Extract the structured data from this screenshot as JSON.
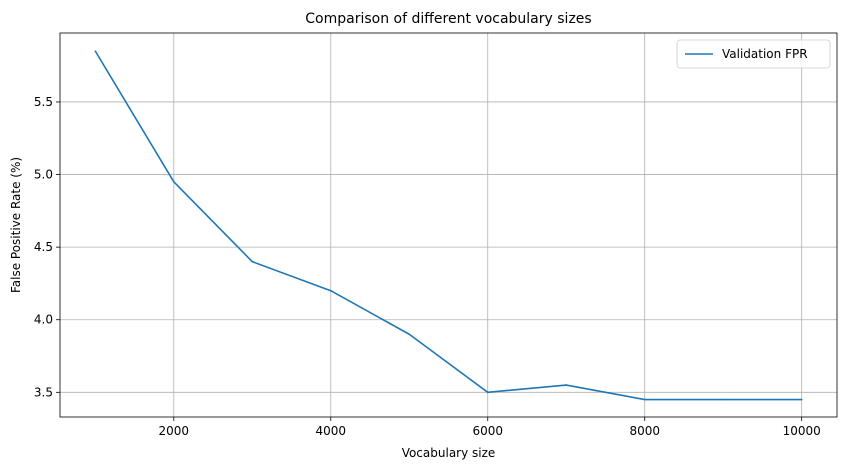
{
  "chart_data": {
    "type": "line",
    "title": "Comparison of different vocabulary sizes",
    "xlabel": "Vocabulary size",
    "ylabel": "False Positive Rate (%)",
    "xlim": [
      550,
      10450
    ],
    "ylim": [
      3.33,
      5.975
    ],
    "xticks": [
      2000,
      4000,
      6000,
      8000,
      10000
    ],
    "yticks": [
      3.5,
      4.0,
      4.5,
      5.0,
      5.5
    ],
    "grid": true,
    "legend_position": "top-right",
    "series": [
      {
        "name": "Validation FPR",
        "color": "#1f77b4",
        "x": [
          1000,
          2000,
          3000,
          4000,
          5000,
          6000,
          7000,
          8000,
          9000,
          10000
        ],
        "y": [
          5.85,
          4.95,
          4.4,
          4.2,
          3.9,
          3.5,
          3.55,
          3.45,
          3.45,
          3.45
        ]
      }
    ]
  }
}
